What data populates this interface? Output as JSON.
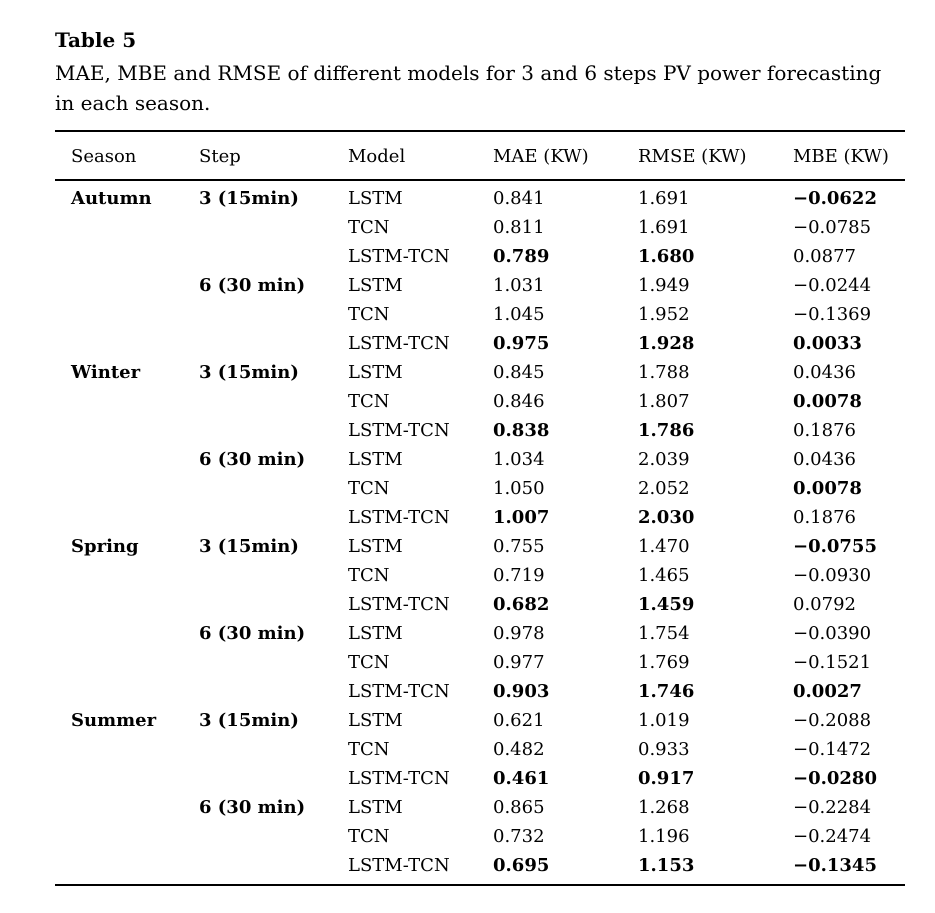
{
  "table": {
    "label": "Table 5",
    "caption": "MAE, MBE and RMSE of different models for 3 and 6 steps PV power forecasting\nin each season.",
    "columns": [
      "Season",
      "Step",
      "Model",
      "MAE (KW)",
      "RMSE (KW)",
      "MBE (KW)"
    ],
    "rows": [
      {
        "season": "Autumn",
        "step": "3 (15min)",
        "model": "LSTM",
        "mae": "0.841",
        "rmse": "1.691",
        "mbe": "−0.0622",
        "bold": [
          "mbe"
        ]
      },
      {
        "season": "",
        "step": "",
        "model": "TCN",
        "mae": "0.811",
        "rmse": "1.691",
        "mbe": "−0.0785",
        "bold": []
      },
      {
        "season": "",
        "step": "",
        "model": "LSTM-TCN",
        "mae": "0.789",
        "rmse": "1.680",
        "mbe": "0.0877",
        "bold": [
          "mae",
          "rmse"
        ]
      },
      {
        "season": "",
        "step": "6 (30 min)",
        "model": "LSTM",
        "mae": "1.031",
        "rmse": "1.949",
        "mbe": "−0.0244",
        "bold": []
      },
      {
        "season": "",
        "step": "",
        "model": "TCN",
        "mae": "1.045",
        "rmse": "1.952",
        "mbe": "−0.1369",
        "bold": []
      },
      {
        "season": "",
        "step": "",
        "model": "LSTM-TCN",
        "mae": "0.975",
        "rmse": "1.928",
        "mbe": "0.0033",
        "bold": [
          "mae",
          "rmse",
          "mbe"
        ]
      },
      {
        "season": "Winter",
        "step": "3 (15min)",
        "model": "LSTM",
        "mae": "0.845",
        "rmse": "1.788",
        "mbe": "0.0436",
        "bold": []
      },
      {
        "season": "",
        "step": "",
        "model": "TCN",
        "mae": "0.846",
        "rmse": "1.807",
        "mbe": "0.0078",
        "bold": [
          "mbe"
        ]
      },
      {
        "season": "",
        "step": "",
        "model": "LSTM-TCN",
        "mae": "0.838",
        "rmse": "1.786",
        "mbe": "0.1876",
        "bold": [
          "mae",
          "rmse"
        ]
      },
      {
        "season": "",
        "step": "6 (30 min)",
        "model": "LSTM",
        "mae": "1.034",
        "rmse": "2.039",
        "mbe": "0.0436",
        "bold": []
      },
      {
        "season": "",
        "step": "",
        "model": "TCN",
        "mae": "1.050",
        "rmse": "2.052",
        "mbe": "0.0078",
        "bold": [
          "mbe"
        ]
      },
      {
        "season": "",
        "step": "",
        "model": "LSTM-TCN",
        "mae": "1.007",
        "rmse": "2.030",
        "mbe": "0.1876",
        "bold": [
          "mae",
          "rmse"
        ]
      },
      {
        "season": "Spring",
        "step": "3 (15min)",
        "model": "LSTM",
        "mae": "0.755",
        "rmse": "1.470",
        "mbe": "−0.0755",
        "bold": [
          "mbe"
        ]
      },
      {
        "season": "",
        "step": "",
        "model": "TCN",
        "mae": "0.719",
        "rmse": "1.465",
        "mbe": "−0.0930",
        "bold": []
      },
      {
        "season": "",
        "step": "",
        "model": "LSTM-TCN",
        "mae": "0.682",
        "rmse": "1.459",
        "mbe": "0.0792",
        "bold": [
          "mae",
          "rmse"
        ]
      },
      {
        "season": "",
        "step": "6 (30 min)",
        "model": "LSTM",
        "mae": "0.978",
        "rmse": "1.754",
        "mbe": "−0.0390",
        "bold": []
      },
      {
        "season": "",
        "step": "",
        "model": "TCN",
        "mae": "0.977",
        "rmse": "1.769",
        "mbe": "−0.1521",
        "bold": []
      },
      {
        "season": "",
        "step": "",
        "model": "LSTM-TCN",
        "mae": "0.903",
        "rmse": "1.746",
        "mbe": "0.0027",
        "bold": [
          "mae",
          "rmse",
          "mbe"
        ]
      },
      {
        "season": "Summer",
        "step": "3 (15min)",
        "model": "LSTM",
        "mae": "0.621",
        "rmse": "1.019",
        "mbe": "−0.2088",
        "bold": []
      },
      {
        "season": "",
        "step": "",
        "model": "TCN",
        "mae": "0.482",
        "rmse": "0.933",
        "mbe": "−0.1472",
        "bold": []
      },
      {
        "season": "",
        "step": "",
        "model": "LSTM-TCN",
        "mae": "0.461",
        "rmse": "0.917",
        "mbe": "−0.0280",
        "bold": [
          "mae",
          "rmse",
          "mbe"
        ]
      },
      {
        "season": "",
        "step": "6 (30 min)",
        "model": "LSTM",
        "mae": "0.865",
        "rmse": "1.268",
        "mbe": "−0.2284",
        "bold": []
      },
      {
        "season": "",
        "step": "",
        "model": "TCN",
        "mae": "0.732",
        "rmse": "1.196",
        "mbe": "−0.2474",
        "bold": []
      },
      {
        "season": "",
        "step": "",
        "model": "LSTM-TCN",
        "mae": "0.695",
        "rmse": "1.153",
        "mbe": "−0.1345",
        "bold": [
          "mae",
          "rmse",
          "mbe"
        ]
      }
    ]
  }
}
